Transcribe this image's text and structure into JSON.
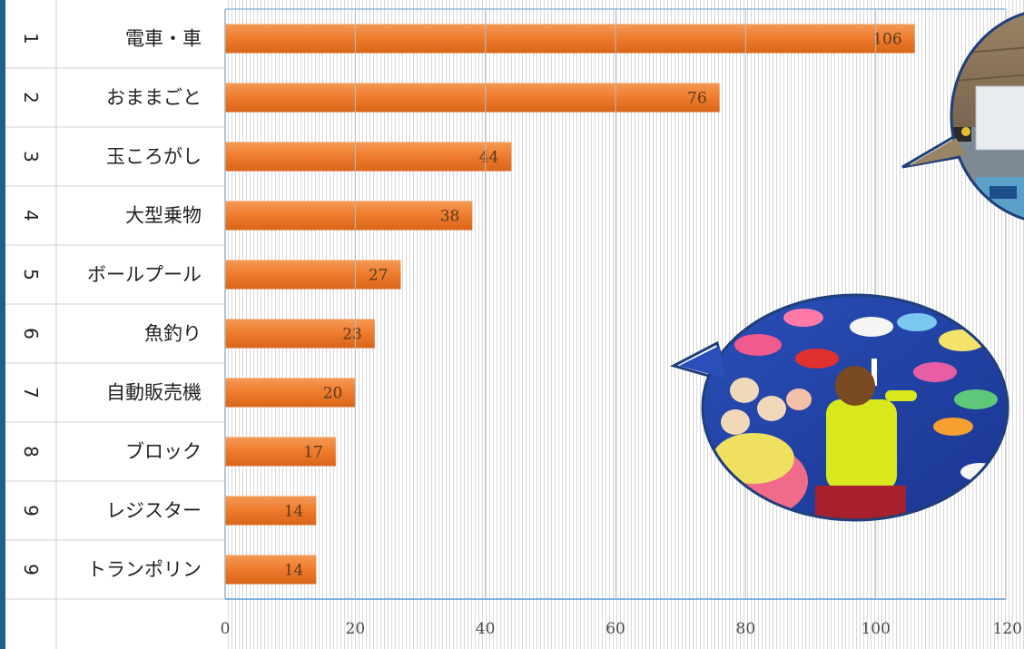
{
  "chart_data": {
    "type": "bar",
    "orientation": "horizontal",
    "ranks": [
      "1",
      "2",
      "3",
      "4",
      "5",
      "6",
      "7",
      "8",
      "9",
      "9"
    ],
    "categories": [
      "電車・車",
      "おままごと",
      "玉ころがし",
      "大型乗物",
      "ボールプール",
      "魚釣り",
      "自動販売機",
      "ブロック",
      "レジスター",
      "トランポリン"
    ],
    "values": [
      106,
      76,
      44,
      38,
      27,
      23,
      20,
      17,
      14,
      14
    ],
    "xlim": [
      0,
      120
    ],
    "xticks": [
      0,
      20,
      40,
      60,
      80,
      100,
      120
    ],
    "xtick_labels": [
      "0",
      "20",
      "40",
      "60",
      "80",
      "100",
      "120"
    ],
    "grid": "vertical",
    "bar_color": "#ee7b2c",
    "title": "",
    "xlabel": "",
    "ylabel": ""
  },
  "photos": [
    {
      "subject": "toy-vehicles-photo"
    },
    {
      "subject": "fish-wall-photo"
    }
  ],
  "colors": {
    "bar": "#ee7b2c",
    "axis": "#5b9bd5",
    "row_divider": "#d0d0d0",
    "frame": "#1f5f8b"
  }
}
